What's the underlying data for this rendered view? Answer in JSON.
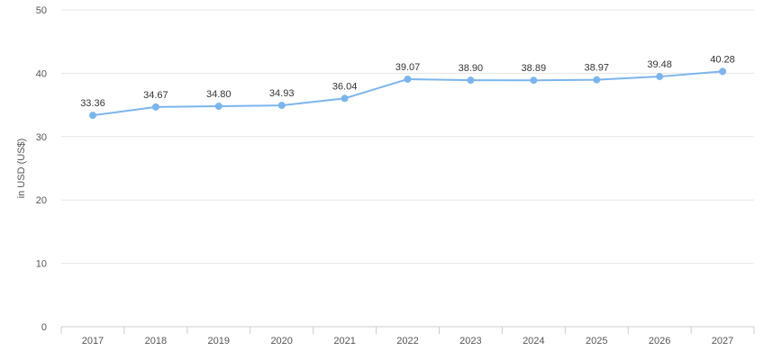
{
  "chart_data": {
    "type": "line",
    "title": "",
    "xlabel": "",
    "ylabel": "in USD (US$)",
    "categories": [
      "2017",
      "2018",
      "2019",
      "2020",
      "2021",
      "2022",
      "2023",
      "2024",
      "2025",
      "2026",
      "2027"
    ],
    "series": [
      {
        "values": [
          33.36,
          34.67,
          34.8,
          34.93,
          36.04,
          39.07,
          38.9,
          38.89,
          38.97,
          39.48,
          40.28
        ],
        "labels": [
          "33.36",
          "34.67",
          "34.80",
          "34.93",
          "36.04",
          "39.07",
          "38.90",
          "38.89",
          "38.97",
          "39.48",
          "40.28"
        ],
        "color": "#7cb5ec"
      }
    ],
    "ylim": [
      0,
      50
    ],
    "yticks": [
      "0",
      "10",
      "20",
      "30",
      "40",
      "50"
    ],
    "grid": true,
    "legend": "none"
  }
}
